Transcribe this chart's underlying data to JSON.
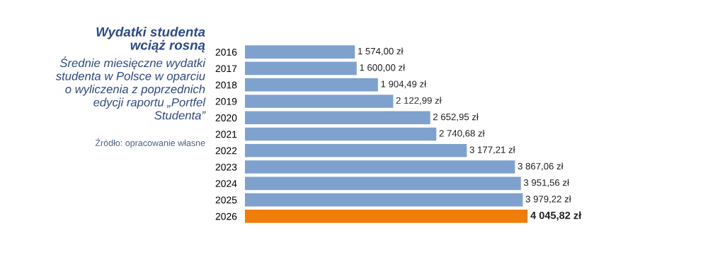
{
  "chart_data": {
    "type": "bar",
    "orientation": "horizontal",
    "title": "Wydatki studenta\nwciąż rosną",
    "subtitle": "Średnie miesięczne wydatki\nstudenta w Polsce w oparciu\no wyliczenia z poprzednich\nedycji raportu „Portfel\nStudenta”",
    "annotations": [
      "Źródło: opracowanie własne"
    ],
    "categories": [
      "2016",
      "2017",
      "2018",
      "2019",
      "2020",
      "2021",
      "2022",
      "2023",
      "2024",
      "2025",
      "2026"
    ],
    "values": [
      1574.0,
      1600.0,
      1904.49,
      2122.99,
      2652.95,
      2740.68,
      3177.21,
      3867.06,
      3951.56,
      3979.22,
      4045.82
    ],
    "colors": [
      "#7ea1cd",
      "#7ea1cd",
      "#7ea1cd",
      "#7ea1cd",
      "#7ea1cd",
      "#7ea1cd",
      "#7ea1cd",
      "#7ea1cd",
      "#7ea1cd",
      "#7ea1cd",
      "#ef7d0a"
    ],
    "value_labels": [
      "1 574,00 zł",
      "1 600,00 zł",
      "1 904,49 zł",
      "2 122,99 zł",
      "2 652,95 zł",
      "2 740,68 zł",
      "3 177,21 zł",
      "3 867,06 zł",
      "3 951,56 zł",
      "3 979,22 zł",
      "4 045,82 zł"
    ],
    "tick_labels": "y",
    "grid": false,
    "legend": false
  }
}
